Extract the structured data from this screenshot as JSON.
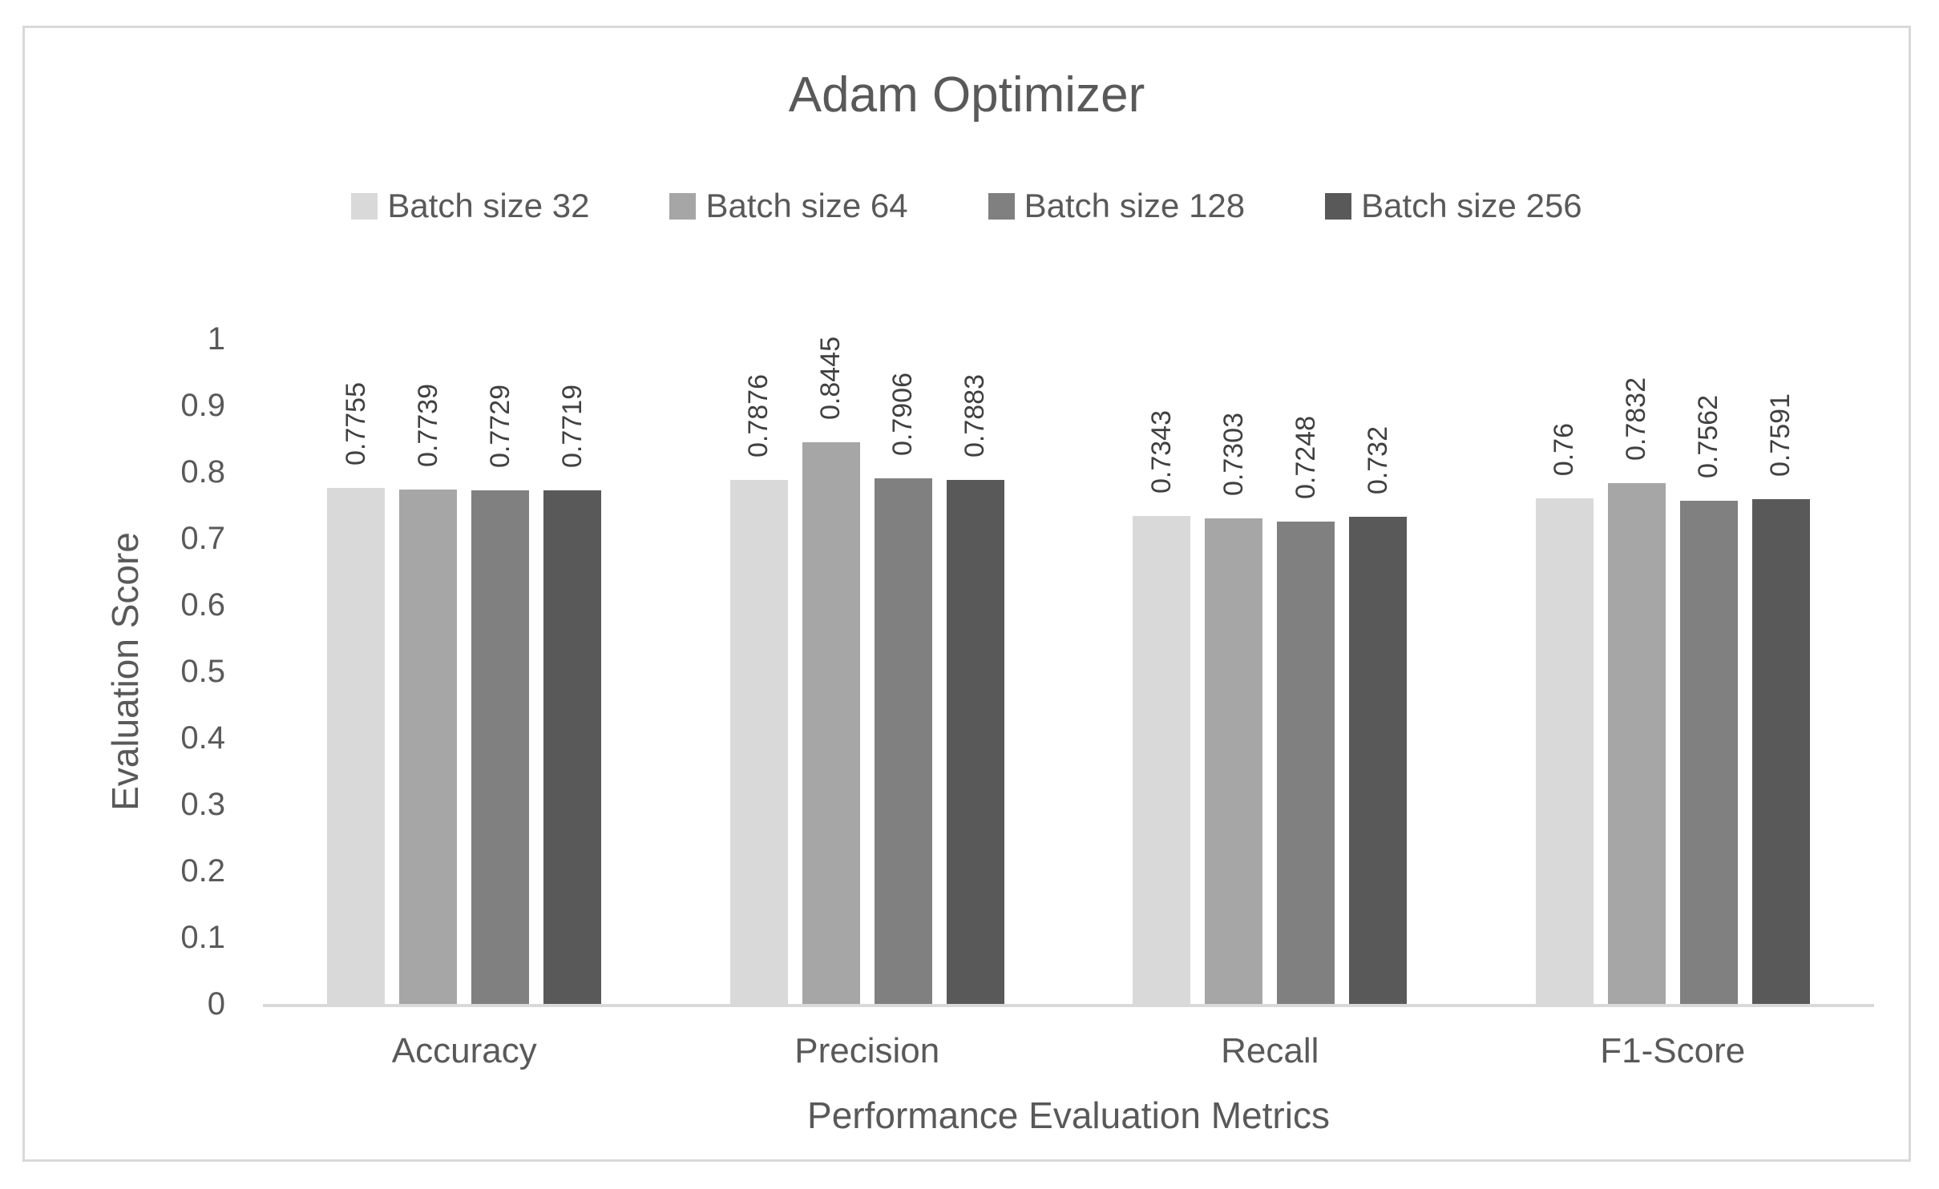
{
  "chart_data": {
    "type": "bar",
    "title": "Adam Optimizer",
    "xlabel": "Performance Evaluation Metrics",
    "ylabel": "Evaluation Score",
    "ylim": [
      0,
      1
    ],
    "y_ticks": [
      "0",
      "0.1",
      "0.2",
      "0.3",
      "0.4",
      "0.5",
      "0.6",
      "0.7",
      "0.8",
      "0.9",
      "1"
    ],
    "grid": false,
    "legend_position": "top-center",
    "categories": [
      "Accuracy",
      "Precision",
      "Recall",
      "F1-Score"
    ],
    "series": [
      {
        "name": "Batch size 32",
        "color": "#d9d9d9",
        "values": [
          0.7755,
          0.7876,
          0.7343,
          0.76
        ]
      },
      {
        "name": "Batch size 64",
        "color": "#a6a6a6",
        "values": [
          0.7739,
          0.8445,
          0.7303,
          0.7832
        ]
      },
      {
        "name": "Batch size 128",
        "color": "#808080",
        "values": [
          0.7729,
          0.7906,
          0.7248,
          0.7562
        ]
      },
      {
        "name": "Batch size 256",
        "color": "#595959",
        "values": [
          0.7719,
          0.7883,
          0.732,
          0.7591
        ]
      }
    ],
    "data_label_rotation_deg": 90
  },
  "style": {
    "text_color": "#595959",
    "data_label_color": "#404040",
    "axis_line_color": "#d9d9d9",
    "frame_border_color": "#d9d9d9",
    "background": "#ffffff"
  }
}
